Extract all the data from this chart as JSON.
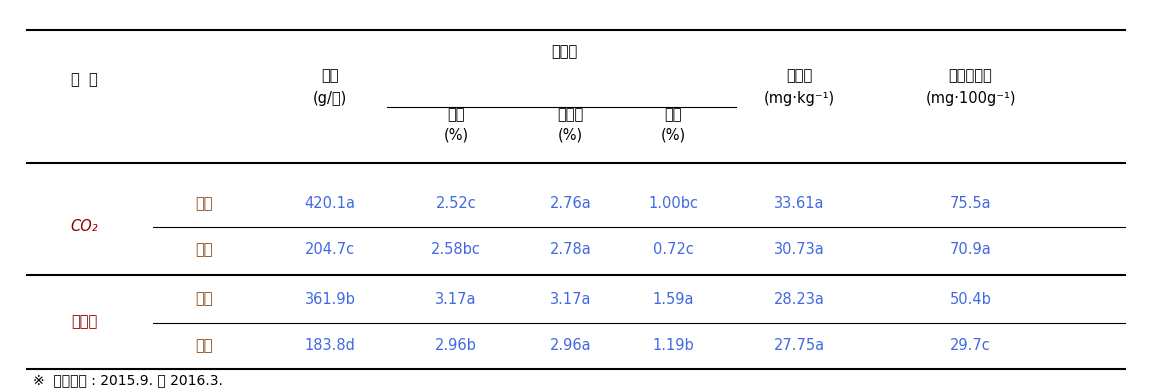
{
  "title": "",
  "footnote": "※  재배기간 : 2015.9. ～ 2016.3.",
  "col_header_row1": [
    "처  리",
    "",
    "수량\n(g/주)",
    "유리당",
    "",
    "",
    "페놀류\n(mg·kg⁻¹)",
    "안토시아닌\n(mg·100g⁻¹)"
  ],
  "col_header_row2": [
    "",
    "",
    "",
    "과당\n(%)",
    "포도당\n(%)",
    "자당\n(%)",
    "",
    ""
  ],
  "rows": [
    [
      "CO₂",
      "상단",
      "420.1a",
      "2.52c",
      "2.76a",
      "1.00bc",
      "33.61a",
      "75.5a"
    ],
    [
      "CO₂",
      "하단",
      "204.7c",
      "2.58bc",
      "2.78a",
      "0.72c",
      "30.73a",
      "70.9a"
    ],
    [
      "무처리",
      "상단",
      "361.9b",
      "3.17a",
      "3.17a",
      "1.59a",
      "28.23a",
      "50.4b"
    ],
    [
      "무처리",
      "하단",
      "183.8d",
      "2.96b",
      "2.96a",
      "1.19b",
      "27.75a",
      "29.7c"
    ]
  ],
  "bg_color": "white",
  "header_color": "#000000",
  "cell_color": "#000000",
  "treatment_color": "#8B0000",
  "subrow_color": "#8B4513",
  "value_color": "#4169E1"
}
